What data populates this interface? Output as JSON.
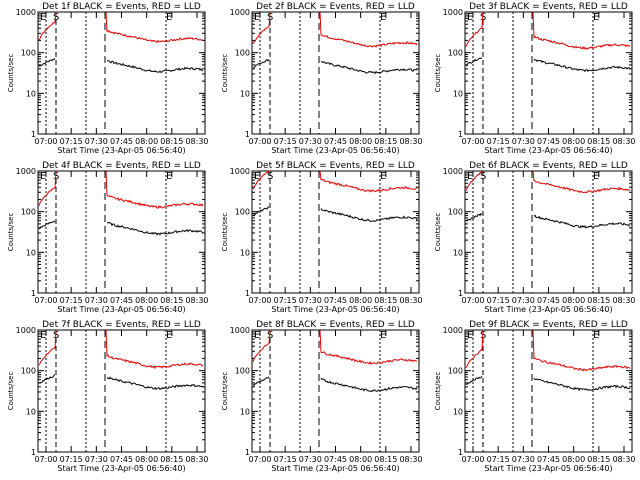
{
  "chart_data": [
    {
      "type": "line",
      "title": "Det 1f BLACK = Events, RED = LLD",
      "xlabel": "Start Time (23-Apr-05 06:56:40)",
      "ylabel": "Counts/sec",
      "yscale": "log",
      "ylim": [
        1,
        1000
      ],
      "y_ticks": [
        "1",
        "10",
        "100",
        "1000"
      ],
      "x_ticks": [
        "07:00",
        "07:15",
        "07:30",
        "07:45",
        "08:00",
        "08:15",
        "08:30"
      ],
      "markers": [
        "E",
        "S",
        "E"
      ],
      "series": [
        {
          "color": "#000000",
          "level": 42
        },
        {
          "color": "#e00000",
          "level": 230
        }
      ]
    },
    {
      "type": "line",
      "title": "Det 2f BLACK = Events, RED = LLD",
      "xlabel": "Start Time (23-Apr-05 06:56:40)",
      "ylabel": "Counts/sec",
      "yscale": "log",
      "ylim": [
        1,
        1000
      ],
      "y_ticks": [
        "1",
        "10",
        "100",
        "1000"
      ],
      "x_ticks": [
        "07:00",
        "07:15",
        "07:30",
        "07:45",
        "08:00",
        "08:15",
        "08:30"
      ],
      "markers": [
        "E",
        "S",
        "E"
      ],
      "series": [
        {
          "color": "#000000",
          "level": 40
        },
        {
          "color": "#e00000",
          "level": 180
        }
      ]
    },
    {
      "type": "line",
      "title": "Det 3f BLACK = Events, RED = LLD",
      "xlabel": "Start Time (23-Apr-05 06:56:40)",
      "ylabel": "Counts/sec",
      "yscale": "log",
      "ylim": [
        1,
        1000
      ],
      "y_ticks": [
        "1",
        "10",
        "100",
        "1000"
      ],
      "x_ticks": [
        "07:00",
        "07:15",
        "07:30",
        "07:45",
        "08:00",
        "08:15",
        "08:30"
      ],
      "markers": [
        "E",
        "S",
        "E"
      ],
      "series": [
        {
          "color": "#000000",
          "level": 45
        },
        {
          "color": "#e00000",
          "level": 160
        }
      ]
    },
    {
      "type": "line",
      "title": "Det 4f BLACK = Events, RED = LLD",
      "xlabel": "Start Time (23-Apr-05 06:56:40)",
      "ylabel": "Counts/sec",
      "yscale": "log",
      "ylim": [
        1,
        1000
      ],
      "y_ticks": [
        "1",
        "10",
        "100",
        "1000"
      ],
      "x_ticks": [
        "07:00",
        "07:15",
        "07:30",
        "07:45",
        "08:00",
        "08:15",
        "08:30"
      ],
      "markers": [
        "E",
        "S",
        "E"
      ],
      "series": [
        {
          "color": "#000000",
          "level": 35
        },
        {
          "color": "#e00000",
          "level": 160
        }
      ]
    },
    {
      "type": "line",
      "title": "Det 5f BLACK = Events, RED = LLD",
      "xlabel": "Start Time (23-Apr-05 06:56:40)",
      "ylabel": "Counts/sec",
      "yscale": "log",
      "ylim": [
        1,
        1000
      ],
      "y_ticks": [
        "1",
        "10",
        "100",
        "1000"
      ],
      "x_ticks": [
        "07:00",
        "07:15",
        "07:30",
        "07:45",
        "08:00",
        "08:15",
        "08:30"
      ],
      "markers": [
        "E",
        "S",
        "E"
      ],
      "series": [
        {
          "color": "#000000",
          "level": 75
        },
        {
          "color": "#e00000",
          "level": 400
        }
      ]
    },
    {
      "type": "line",
      "title": "Det 6f BLACK = Events, RED = LLD",
      "xlabel": "Start Time (23-Apr-05 06:56:40)",
      "ylabel": "Counts/sec",
      "yscale": "log",
      "ylim": [
        1,
        1000
      ],
      "y_ticks": [
        "1",
        "10",
        "100",
        "1000"
      ],
      "x_ticks": [
        "07:00",
        "07:15",
        "07:30",
        "07:45",
        "08:00",
        "08:15",
        "08:30"
      ],
      "markers": [
        "E",
        "S",
        "E"
      ],
      "series": [
        {
          "color": "#000000",
          "level": 52
        },
        {
          "color": "#e00000",
          "level": 380
        }
      ]
    },
    {
      "type": "line",
      "title": "Det 7f BLACK = Events, RED = LLD",
      "xlabel": "Start Time (23-Apr-05 06:56:40)",
      "ylabel": "Counts/sec",
      "yscale": "log",
      "ylim": [
        1,
        1000
      ],
      "y_ticks": [
        "1",
        "10",
        "100",
        "1000"
      ],
      "x_ticks": [
        "07:00",
        "07:15",
        "07:30",
        "07:45",
        "08:00",
        "08:15",
        "08:30"
      ],
      "markers": [
        "E",
        "S",
        "E"
      ],
      "series": [
        {
          "color": "#000000",
          "level": 45
        },
        {
          "color": "#e00000",
          "level": 150
        }
      ]
    },
    {
      "type": "line",
      "title": "Det 8f BLACK = Events, RED = LLD",
      "xlabel": "Start Time (23-Apr-05 06:56:40)",
      "ylabel": "Counts/sec",
      "yscale": "log",
      "ylim": [
        1,
        1000
      ],
      "y_ticks": [
        "1",
        "10",
        "100",
        "1000"
      ],
      "x_ticks": [
        "07:00",
        "07:15",
        "07:30",
        "07:45",
        "08:00",
        "08:15",
        "08:30"
      ],
      "markers": [
        "E",
        "S",
        "E"
      ],
      "series": [
        {
          "color": "#000000",
          "level": 40
        },
        {
          "color": "#e00000",
          "level": 190
        }
      ]
    },
    {
      "type": "line",
      "title": "Det 9f BLACK = Events, RED = LLD",
      "xlabel": "Start Time (23-Apr-05 06:56:40)",
      "ylabel": "Counts/sec",
      "yscale": "log",
      "ylim": [
        1,
        1000
      ],
      "y_ticks": [
        "1",
        "10",
        "100",
        "1000"
      ],
      "x_ticks": [
        "07:00",
        "07:15",
        "07:30",
        "07:45",
        "08:00",
        "08:15",
        "08:30"
      ],
      "markers": [
        "E",
        "S",
        "E"
      ],
      "series": [
        {
          "color": "#000000",
          "level": 42
        },
        {
          "color": "#e00000",
          "level": 130
        }
      ]
    }
  ]
}
